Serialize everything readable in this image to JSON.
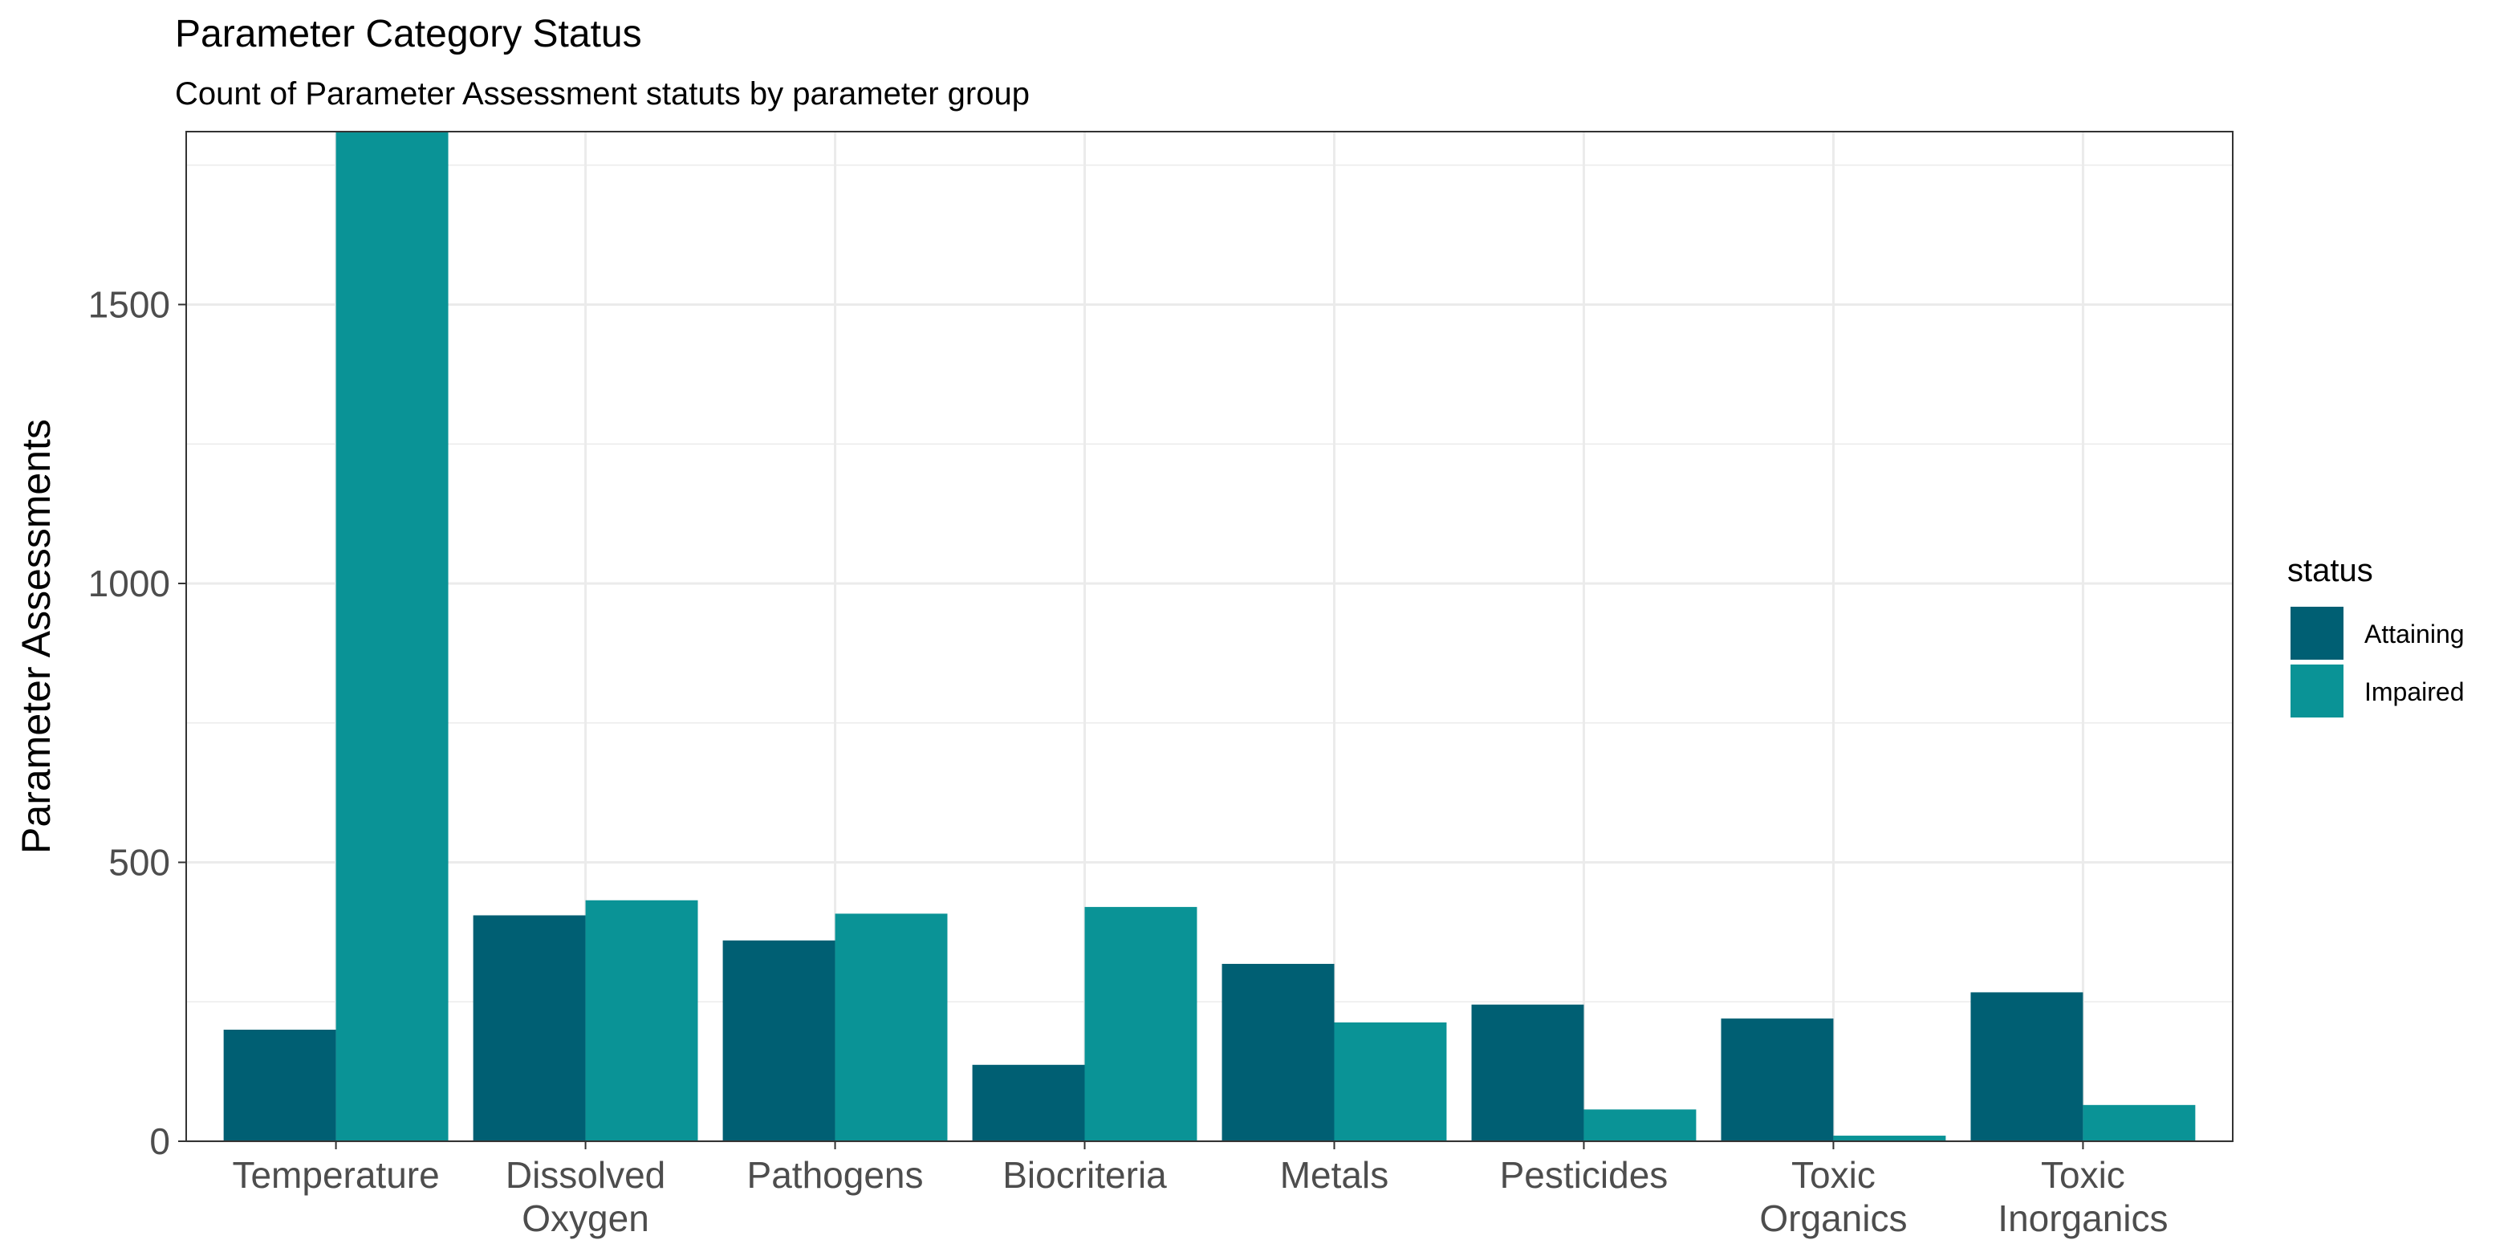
{
  "chart_data": {
    "type": "bar",
    "title": "Parameter Category Status",
    "subtitle": "Count of Parameter Assessment statuts by parameter group",
    "xlabel": "",
    "ylabel": "Parameter Assessments",
    "categories": [
      [
        "Temperature"
      ],
      [
        "Dissolved",
        "Oxygen"
      ],
      [
        "Pathogens"
      ],
      [
        "Biocriteria"
      ],
      [
        "Metals"
      ],
      [
        "Pesticides"
      ],
      [
        "Toxic",
        "Organics"
      ],
      [
        "Toxic",
        "Inorganics"
      ]
    ],
    "series": [
      {
        "name": "Attaining",
        "color": "#005F73",
        "values": [
          200,
          405,
          360,
          137,
          318,
          245,
          220,
          267
        ]
      },
      {
        "name": "Impaired",
        "color": "#0A9396",
        "values": [
          1820,
          432,
          408,
          420,
          213,
          57,
          10,
          65
        ]
      }
    ],
    "ylim": [
      0,
      1810
    ],
    "yticks": [
      0,
      500,
      1000,
      1500
    ],
    "grid": true,
    "legend": {
      "title": "status",
      "position": "right"
    }
  }
}
